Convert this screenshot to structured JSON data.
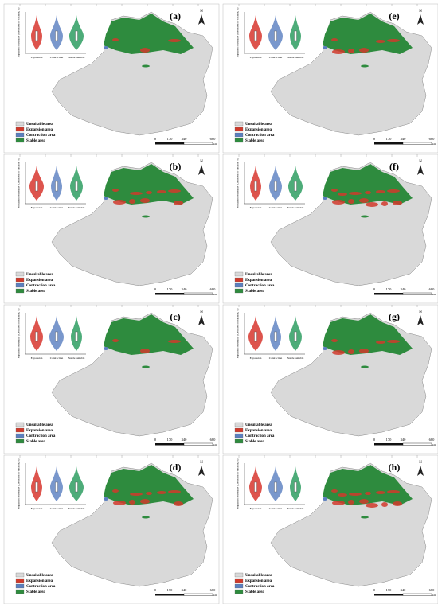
{
  "panels": [
    {
      "label": "(a)"
    },
    {
      "label": "(e)"
    },
    {
      "label": "(b)"
    },
    {
      "label": "(f)"
    },
    {
      "label": "(c)"
    },
    {
      "label": "(g)"
    },
    {
      "label": "(d)"
    },
    {
      "label": "(h)"
    }
  ],
  "legend": [
    "Unsuitable area",
    "Expansion area",
    "Contraction area",
    "Stable area"
  ],
  "scale_bar": {
    "ticks": [
      "0",
      "170",
      "340",
      "680"
    ],
    "unit": "km"
  },
  "north": "N",
  "violin": {
    "y_label": "Population Seasonality (Coefficient of Variation, %)",
    "categories": [
      "Expansion",
      "Contraction",
      "Stable suitable"
    ]
  }
}
